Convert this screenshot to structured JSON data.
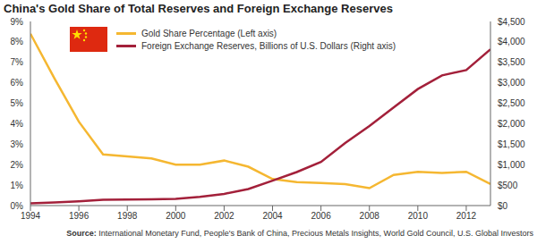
{
  "chart_data": {
    "type": "line",
    "title": "China's Gold Share of Total Reserves and Foreign Exchange Reserves",
    "source": "Source: International Monetary Fund, People's Bank of China, Precious Metals Insights, World Gold Council, U.S. Global Investors",
    "x": [
      1994,
      1995,
      1996,
      1997,
      1998,
      1999,
      2000,
      2001,
      2002,
      2003,
      2004,
      2005,
      2006,
      2007,
      2008,
      2009,
      2010,
      2011,
      2012,
      2013
    ],
    "xlim": [
      1994,
      2013
    ],
    "xticks": [
      1994,
      1996,
      1998,
      2000,
      2002,
      2004,
      2006,
      2008,
      2010,
      2012
    ],
    "ylim": [
      0,
      9
    ],
    "yticks": [
      {
        "value": 0,
        "label": "0%"
      },
      {
        "value": 1,
        "label": "1%"
      },
      {
        "value": 2,
        "label": "2%"
      },
      {
        "value": 3,
        "label": "3%"
      },
      {
        "value": 4,
        "label": "4%"
      },
      {
        "value": 5,
        "label": "5%"
      },
      {
        "value": 6,
        "label": "6%"
      },
      {
        "value": 7,
        "label": "7%"
      },
      {
        "value": 8,
        "label": "8%"
      },
      {
        "value": 9,
        "label": "9%"
      }
    ],
    "y2lim": [
      0,
      4500
    ],
    "y2ticks": [
      {
        "value": 0,
        "label": "$0"
      },
      {
        "value": 500,
        "label": "$500"
      },
      {
        "value": 1000,
        "label": "$1,000"
      },
      {
        "value": 1500,
        "label": "$1,500"
      },
      {
        "value": 2000,
        "label": "$2,000"
      },
      {
        "value": 2500,
        "label": "$2,500"
      },
      {
        "value": 3000,
        "label": "$3,000"
      },
      {
        "value": 3500,
        "label": "$3,500"
      },
      {
        "value": 4000,
        "label": "$4,000"
      },
      {
        "value": 4500,
        "label": "$4,500"
      }
    ],
    "grid": false,
    "legend": "upper left",
    "series": [
      {
        "name": "Gold Share Percentage (Left axis)",
        "color": "#f5b731",
        "values": [
          8.4,
          6.2,
          4.1,
          2.5,
          2.4,
          2.3,
          2.0,
          2.0,
          2.2,
          1.9,
          1.3,
          1.15,
          1.1,
          1.05,
          0.85,
          1.5,
          1.65,
          1.6,
          1.65,
          1.05
        ]
      },
      {
        "name": "Foreign Exchange Reserves, Billions of U.S. Dollars (Right axis)",
        "color": "#a3203a",
        "axis": "y2",
        "values": [
          52,
          74,
          105,
          140,
          145,
          155,
          166,
          212,
          286,
          403,
          610,
          819,
          1066,
          1528,
          1946,
          2399,
          2847,
          3181,
          3312,
          3821
        ]
      }
    ]
  }
}
